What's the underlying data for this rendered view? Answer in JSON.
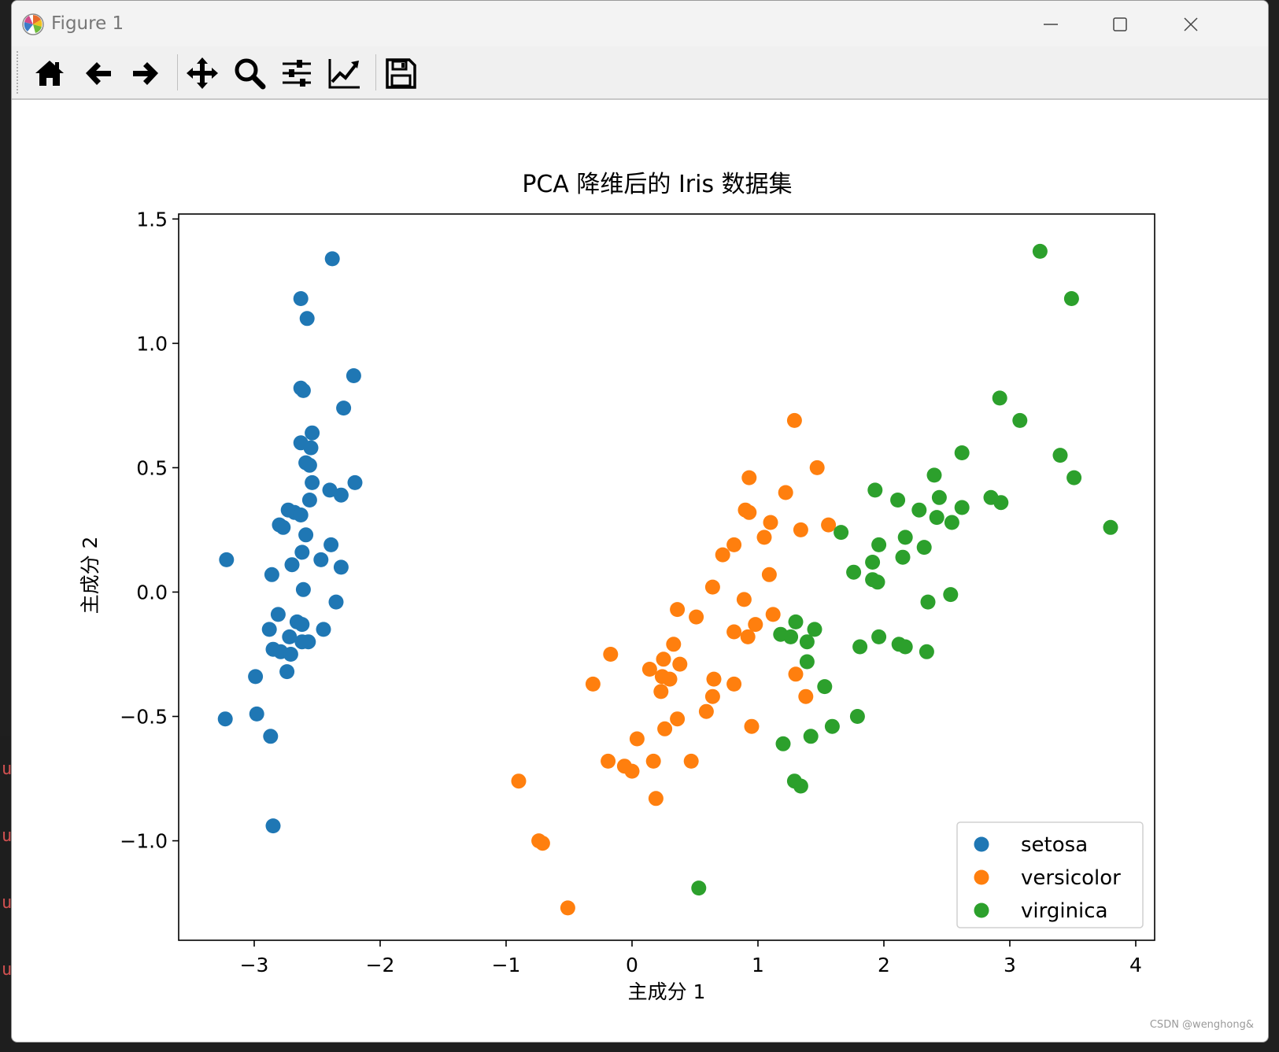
{
  "window": {
    "title": "Figure 1",
    "controls": [
      "minimize",
      "maximize",
      "close"
    ]
  },
  "toolbar": {
    "buttons": [
      {
        "name": "home-button",
        "icon": "home-icon"
      },
      {
        "name": "back-button",
        "icon": "arrow-left-icon"
      },
      {
        "name": "forward-button",
        "icon": "arrow-right-icon"
      },
      {
        "name": "pan-button",
        "icon": "move-arrows-icon"
      },
      {
        "name": "zoom-button",
        "icon": "magnifier-icon"
      },
      {
        "name": "subplots-button",
        "icon": "sliders-icon"
      },
      {
        "name": "edit-axis-button",
        "icon": "line-chart-icon"
      },
      {
        "name": "save-button",
        "icon": "floppy-disk-icon"
      }
    ]
  },
  "watermark": "CSDN @wenghong&",
  "chart_data": {
    "type": "scatter",
    "title": "PCA 降维后的 Iris 数据集",
    "xlabel": "主成分 1",
    "ylabel": "主成分 2",
    "xlim": [
      -3.6,
      4.15
    ],
    "ylim": [
      -1.4,
      1.52
    ],
    "xticks": [
      -3,
      -2,
      -1,
      0,
      1,
      2,
      3,
      4
    ],
    "xtick_labels": [
      "−3",
      "−2",
      "−1",
      "0",
      "1",
      "2",
      "3",
      "4"
    ],
    "yticks": [
      -1.0,
      -0.5,
      0.0,
      0.5,
      1.0,
      1.5
    ],
    "ytick_labels": [
      "−1.0",
      "−0.5",
      "0.0",
      "0.5",
      "1.0",
      "1.5"
    ],
    "grid": false,
    "legend_position": "lower-right",
    "series": [
      {
        "name": "setosa",
        "color": "#1f77b4",
        "points": [
          [
            -2.38,
            1.34
          ],
          [
            -2.63,
            1.18
          ],
          [
            -2.58,
            1.1
          ],
          [
            -2.21,
            0.87
          ],
          [
            -2.63,
            0.82
          ],
          [
            -2.61,
            0.81
          ],
          [
            -2.29,
            0.74
          ],
          [
            -2.54,
            0.64
          ],
          [
            -2.63,
            0.6
          ],
          [
            -2.55,
            0.58
          ],
          [
            -2.59,
            0.52
          ],
          [
            -2.56,
            0.51
          ],
          [
            -2.54,
            0.44
          ],
          [
            -2.2,
            0.44
          ],
          [
            -2.4,
            0.41
          ],
          [
            -2.31,
            0.39
          ],
          [
            -2.56,
            0.37
          ],
          [
            -2.73,
            0.33
          ],
          [
            -2.68,
            0.32
          ],
          [
            -2.63,
            0.31
          ],
          [
            -2.8,
            0.27
          ],
          [
            -2.77,
            0.26
          ],
          [
            -2.59,
            0.23
          ],
          [
            -2.39,
            0.19
          ],
          [
            -2.62,
            0.16
          ],
          [
            -2.47,
            0.13
          ],
          [
            -3.22,
            0.13
          ],
          [
            -2.7,
            0.11
          ],
          [
            -2.31,
            0.1
          ],
          [
            -2.86,
            0.07
          ],
          [
            -2.61,
            0.01
          ],
          [
            -2.35,
            -0.04
          ],
          [
            -2.81,
            -0.09
          ],
          [
            -2.66,
            -0.12
          ],
          [
            -2.62,
            -0.13
          ],
          [
            -2.88,
            -0.15
          ],
          [
            -2.45,
            -0.15
          ],
          [
            -2.72,
            -0.18
          ],
          [
            -2.62,
            -0.2
          ],
          [
            -2.57,
            -0.2
          ],
          [
            -2.85,
            -0.23
          ],
          [
            -2.79,
            -0.24
          ],
          [
            -2.71,
            -0.25
          ],
          [
            -2.74,
            -0.32
          ],
          [
            -2.99,
            -0.34
          ],
          [
            -3.23,
            -0.51
          ],
          [
            -2.98,
            -0.49
          ],
          [
            -2.87,
            -0.58
          ],
          [
            -2.85,
            -0.94
          ]
        ]
      },
      {
        "name": "versicolor",
        "color": "#ff7f0e",
        "points": [
          [
            1.29,
            0.69
          ],
          [
            1.47,
            0.5
          ],
          [
            0.93,
            0.46
          ],
          [
            1.22,
            0.4
          ],
          [
            0.9,
            0.33
          ],
          [
            0.93,
            0.32
          ],
          [
            1.1,
            0.28
          ],
          [
            1.56,
            0.27
          ],
          [
            1.34,
            0.25
          ],
          [
            1.05,
            0.22
          ],
          [
            0.81,
            0.19
          ],
          [
            0.72,
            0.15
          ],
          [
            1.09,
            0.07
          ],
          [
            0.64,
            0.02
          ],
          [
            0.89,
            -0.03
          ],
          [
            0.36,
            -0.07
          ],
          [
            1.12,
            -0.09
          ],
          [
            0.51,
            -0.1
          ],
          [
            0.98,
            -0.13
          ],
          [
            0.81,
            -0.16
          ],
          [
            0.92,
            -0.18
          ],
          [
            0.33,
            -0.21
          ],
          [
            -0.17,
            -0.25
          ],
          [
            0.25,
            -0.27
          ],
          [
            0.38,
            -0.29
          ],
          [
            0.14,
            -0.31
          ],
          [
            0.24,
            -0.34
          ],
          [
            0.3,
            -0.35
          ],
          [
            1.3,
            -0.33
          ],
          [
            0.65,
            -0.35
          ],
          [
            -0.31,
            -0.37
          ],
          [
            0.81,
            -0.37
          ],
          [
            0.23,
            -0.4
          ],
          [
            1.38,
            -0.42
          ],
          [
            0.64,
            -0.42
          ],
          [
            0.59,
            -0.48
          ],
          [
            0.36,
            -0.51
          ],
          [
            0.26,
            -0.55
          ],
          [
            0.95,
            -0.54
          ],
          [
            0.04,
            -0.59
          ],
          [
            0.47,
            -0.68
          ],
          [
            -0.19,
            -0.68
          ],
          [
            0.17,
            -0.68
          ],
          [
            -0.06,
            -0.7
          ],
          [
            0.0,
            -0.72
          ],
          [
            -0.9,
            -0.76
          ],
          [
            0.19,
            -0.83
          ],
          [
            -0.74,
            -1.0
          ],
          [
            -0.71,
            -1.01
          ],
          [
            -0.51,
            -1.27
          ]
        ]
      },
      {
        "name": "virginica",
        "color": "#2ca02c",
        "points": [
          [
            3.24,
            1.37
          ],
          [
            3.49,
            1.18
          ],
          [
            2.92,
            0.78
          ],
          [
            3.08,
            0.69
          ],
          [
            2.62,
            0.56
          ],
          [
            3.4,
            0.55
          ],
          [
            2.4,
            0.47
          ],
          [
            3.51,
            0.46
          ],
          [
            1.93,
            0.41
          ],
          [
            2.44,
            0.38
          ],
          [
            2.85,
            0.38
          ],
          [
            2.11,
            0.37
          ],
          [
            2.93,
            0.36
          ],
          [
            2.62,
            0.34
          ],
          [
            2.28,
            0.33
          ],
          [
            2.42,
            0.3
          ],
          [
            2.54,
            0.28
          ],
          [
            3.8,
            0.26
          ],
          [
            1.66,
            0.24
          ],
          [
            2.17,
            0.22
          ],
          [
            1.96,
            0.19
          ],
          [
            2.32,
            0.18
          ],
          [
            2.15,
            0.14
          ],
          [
            1.91,
            0.12
          ],
          [
            1.76,
            0.08
          ],
          [
            1.91,
            0.05
          ],
          [
            1.95,
            0.04
          ],
          [
            2.53,
            -0.01
          ],
          [
            2.35,
            -0.04
          ],
          [
            1.3,
            -0.12
          ],
          [
            1.45,
            -0.15
          ],
          [
            1.18,
            -0.17
          ],
          [
            1.26,
            -0.18
          ],
          [
            1.96,
            -0.18
          ],
          [
            1.39,
            -0.2
          ],
          [
            2.12,
            -0.21
          ],
          [
            2.17,
            -0.22
          ],
          [
            1.81,
            -0.22
          ],
          [
            2.34,
            -0.24
          ],
          [
            1.39,
            -0.28
          ],
          [
            1.53,
            -0.38
          ],
          [
            1.79,
            -0.5
          ],
          [
            1.59,
            -0.54
          ],
          [
            1.42,
            -0.58
          ],
          [
            1.2,
            -0.61
          ],
          [
            1.29,
            -0.76
          ],
          [
            1.34,
            -0.78
          ],
          [
            0.53,
            -1.19
          ]
        ]
      }
    ]
  }
}
